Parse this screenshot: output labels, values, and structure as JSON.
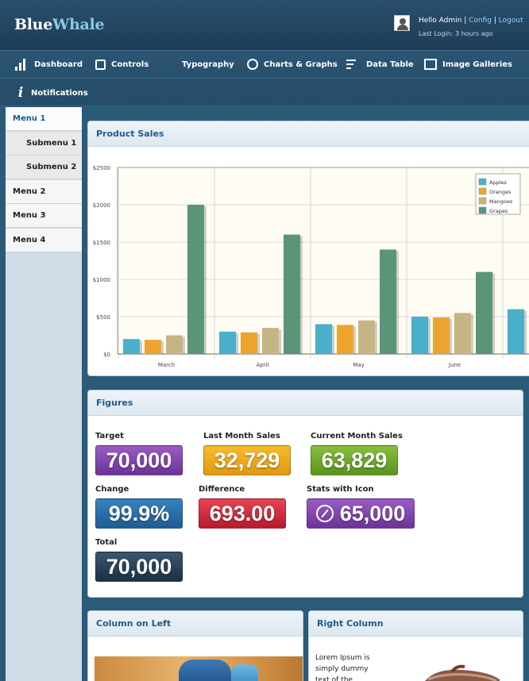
{
  "header": {
    "logo_part1": "Blue",
    "logo_part2": "Whale",
    "greeting": "Hello Admin",
    "sep1": " | ",
    "config_link": "Config",
    "sep2": " | ",
    "logout_link": "Logout",
    "last_login": "Last Login: 3 hours ago"
  },
  "nav": {
    "items": [
      {
        "label": "Dashboard",
        "icon": "bar-chart-icon"
      },
      {
        "label": "Controls",
        "icon": "edit-icon"
      },
      {
        "label": "Typography",
        "icon": ""
      },
      {
        "label": "Charts & Graphs",
        "icon": "pie-chart-icon"
      },
      {
        "label": "Data Table",
        "icon": "list-icon"
      },
      {
        "label": "Image Galleries",
        "icon": "image-icon"
      },
      {
        "label": "Notifications",
        "icon": "info-icon"
      }
    ]
  },
  "sidebar": {
    "items": [
      {
        "label": "Menu 1",
        "active": true
      },
      {
        "label": "Submenu 1"
      },
      {
        "label": "Submenu 2"
      },
      {
        "label": "Menu 2"
      },
      {
        "label": "Menu 3"
      },
      {
        "label": "Menu 4"
      }
    ]
  },
  "product_sales": {
    "title": "Product Sales"
  },
  "chart_data": {
    "type": "bar",
    "title": "",
    "categories": [
      "March",
      "April",
      "May",
      "June"
    ],
    "series": [
      {
        "name": "Apples",
        "color": "#4aafc8",
        "values": [
          200,
          300,
          400,
          500
        ]
      },
      {
        "name": "Oranges",
        "color": "#eda42e",
        "values": [
          190,
          290,
          390,
          490
        ]
      },
      {
        "name": "Mangoes",
        "color": "#c6b584",
        "values": [
          250,
          350,
          450,
          550
        ]
      },
      {
        "name": "Grapes",
        "color": "#5a9675",
        "values": [
          2000,
          1600,
          1400,
          1100
        ]
      }
    ],
    "yticks": [
      "$0",
      "$500",
      "$1000",
      "$1500",
      "$2000",
      "$2500"
    ],
    "ylim": [
      0,
      2500
    ],
    "legend_position": "top-right",
    "grid": true
  },
  "figures": {
    "title": "Figures",
    "items": [
      {
        "label": "Target",
        "value": "70,000",
        "style": "purple"
      },
      {
        "label": "Last Month Sales",
        "value": "32,729",
        "style": "orange"
      },
      {
        "label": "Current Month Sales",
        "value": "63,829",
        "style": "green"
      },
      {
        "label": "Change",
        "value": "99.9%",
        "style": "blue"
      },
      {
        "label": "Difference",
        "value": "693.00",
        "style": "red"
      },
      {
        "label": "Stats with Icon",
        "value": "65,000",
        "style": "purple",
        "icon": "compass-icon"
      },
      {
        "label": "Total",
        "value": "70,000",
        "style": "navy"
      }
    ]
  },
  "left_column": {
    "title": "Column on Left"
  },
  "right_column": {
    "title": "Right Column",
    "text": "Lorem Ipsum is simply dummy text of the"
  }
}
